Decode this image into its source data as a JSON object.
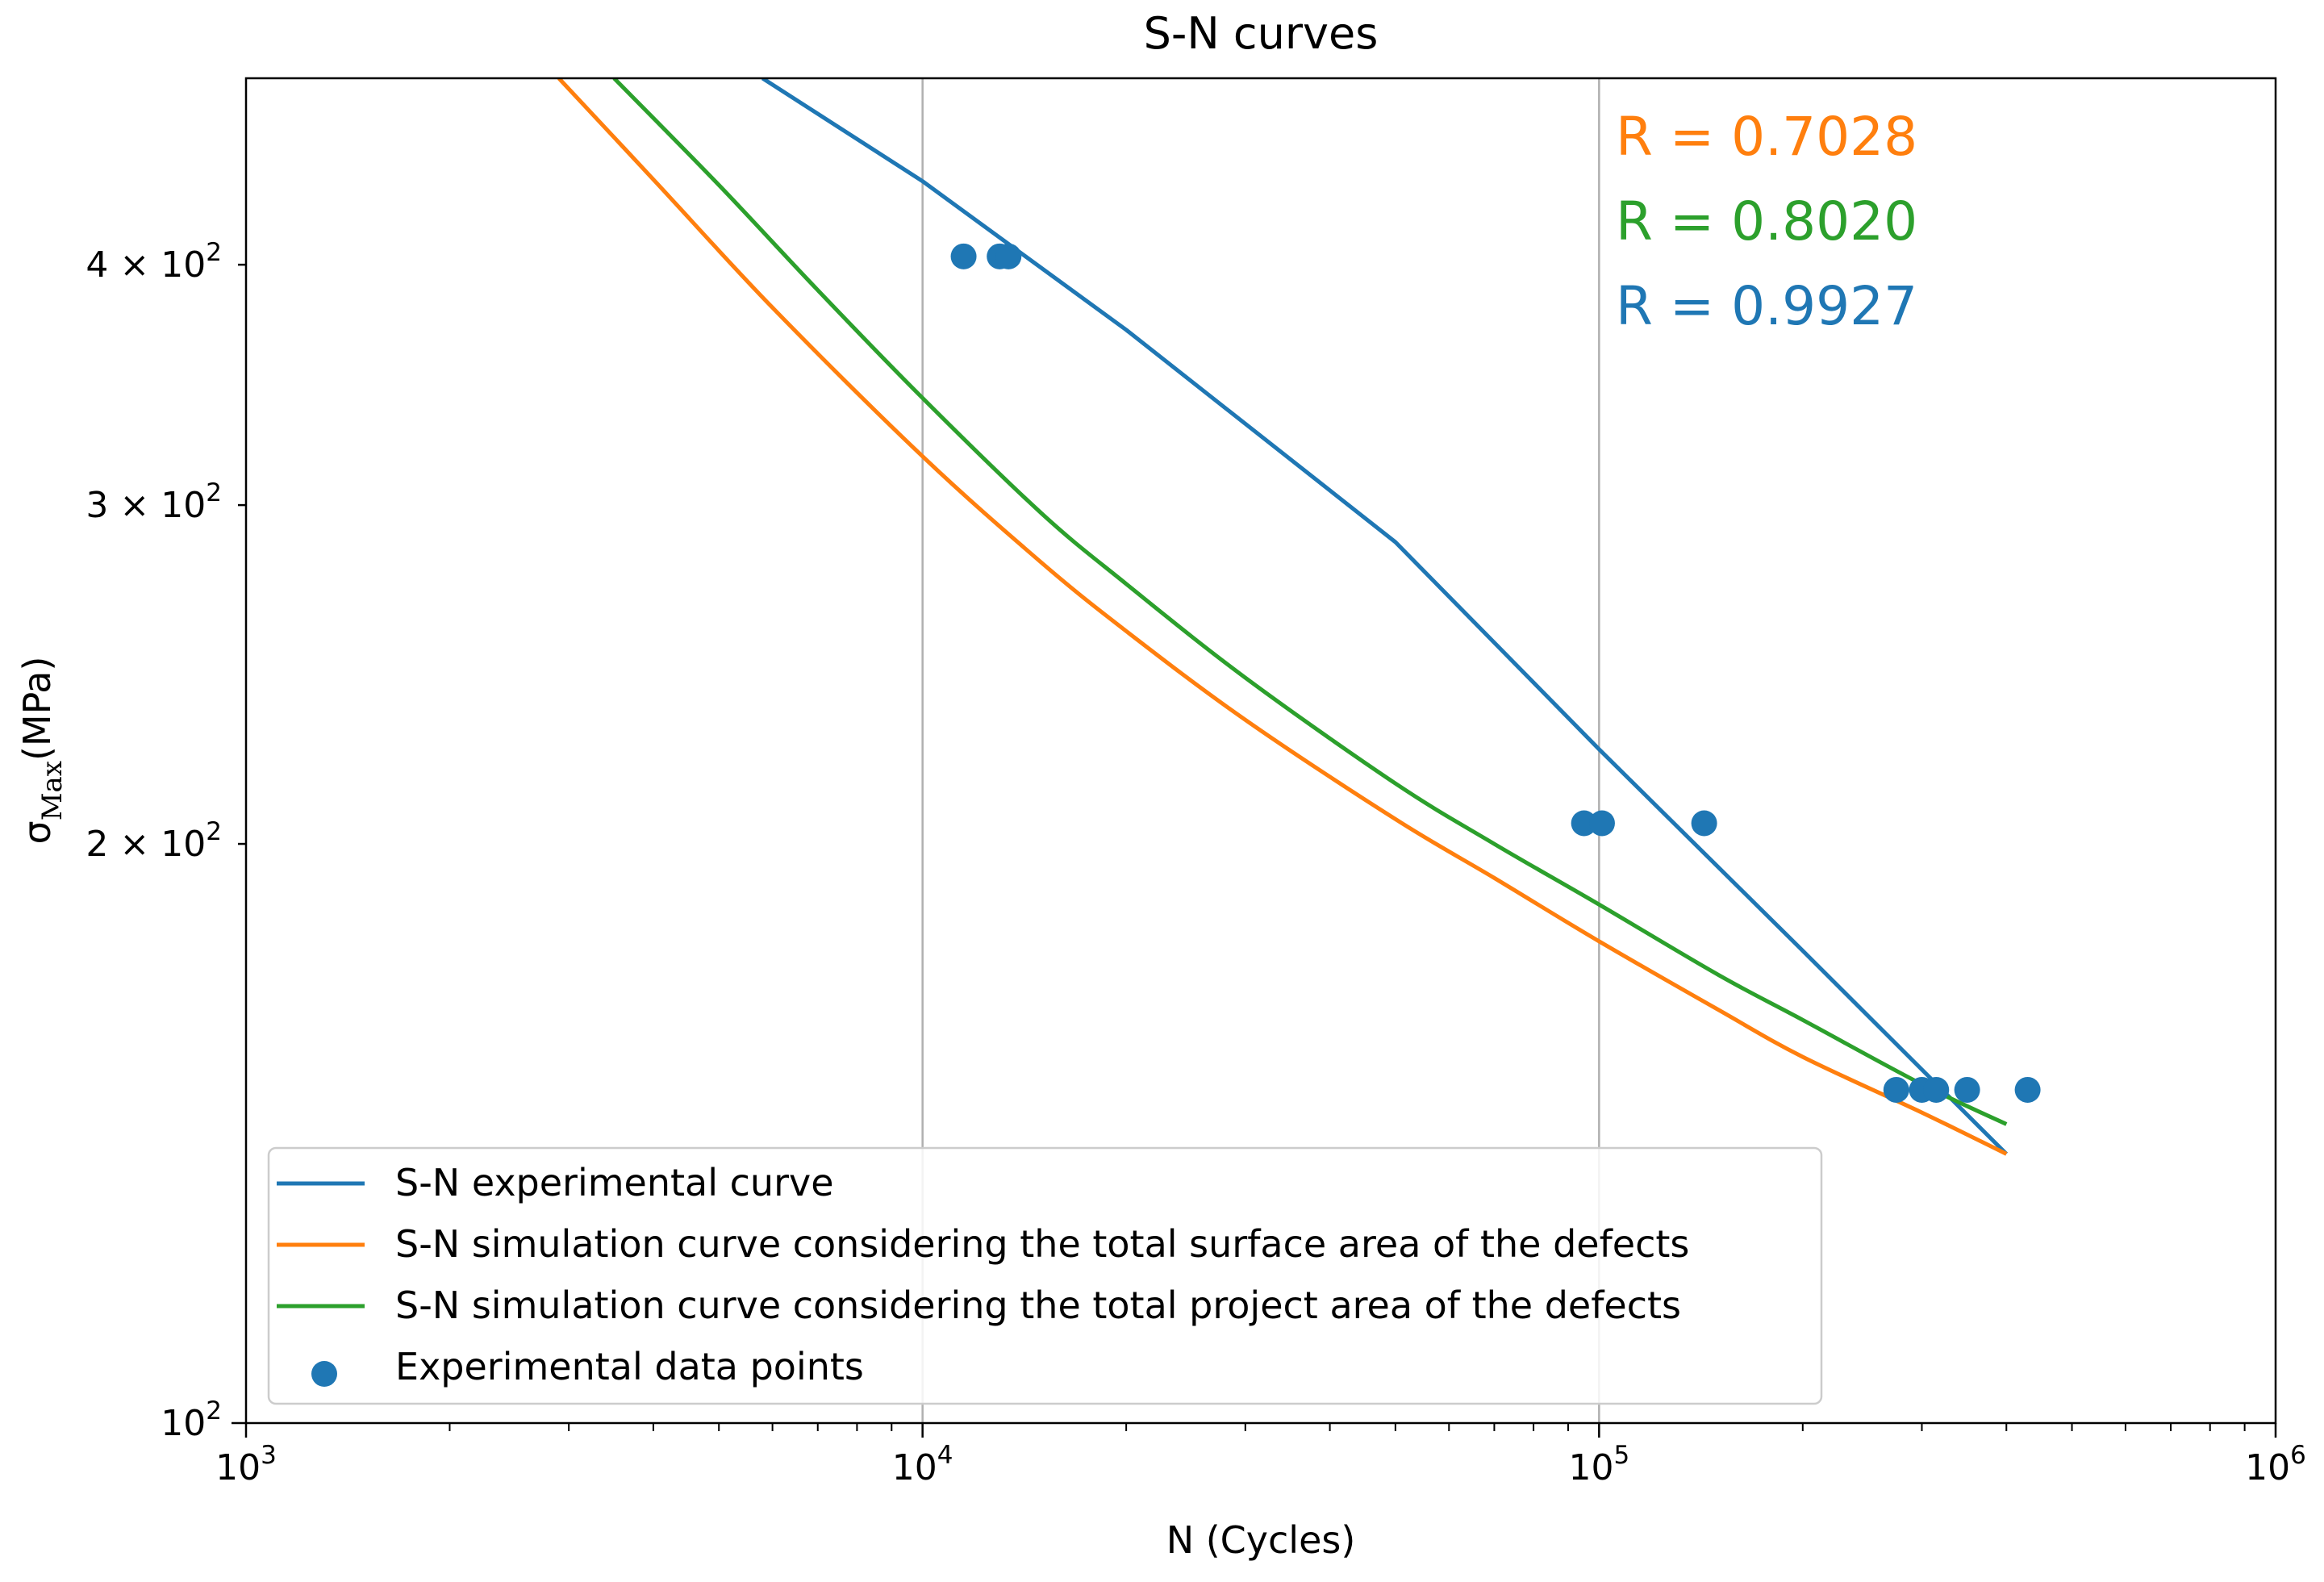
{
  "chart_data": {
    "type": "line",
    "title": "S-N curves",
    "xlabel": "N (Cycles)",
    "ylabel": {
      "base": "σ",
      "subscript": "Max",
      "units": "(MPa)"
    },
    "xscale": "log",
    "yscale": "log",
    "xlim": [
      1000,
      1000000
    ],
    "ylim": [
      100,
      500
    ],
    "grid": "x-major",
    "x_ticks": [
      {
        "value": 1000,
        "base": "10",
        "exp": "3"
      },
      {
        "value": 10000,
        "base": "10",
        "exp": "4"
      },
      {
        "value": 100000,
        "base": "10",
        "exp": "5"
      },
      {
        "value": 1000000,
        "base": "10",
        "exp": "6"
      }
    ],
    "y_ticks": [
      {
        "value": 100,
        "mant": "",
        "base": "10",
        "exp": "2"
      },
      {
        "value": 200,
        "mant": "2 × ",
        "base": "10",
        "exp": "2"
      },
      {
        "value": 300,
        "mant": "3 × ",
        "base": "10",
        "exp": "2"
      },
      {
        "value": 400,
        "mant": "4 × ",
        "base": "10",
        "exp": "2"
      }
    ],
    "series": [
      {
        "name": "S-N experimental curve",
        "color": "#1f77b4",
        "x": [
          5800,
          10000,
          20000,
          50000,
          100000,
          200000,
          400000
        ],
        "y": [
          500,
          442,
          370,
          287,
          224,
          176,
          138
        ]
      },
      {
        "name": "S-N simulation curve considering the total surface area of the defects",
        "color": "#ff7f0e",
        "x": [
          2900,
          4000,
          6000,
          10000,
          15000,
          20000,
          30000,
          50000,
          70000,
          100000,
          150000,
          200000,
          300000,
          400000
        ],
        "y": [
          500,
          443,
          380,
          318,
          280,
          258,
          232,
          206,
          192,
          178,
          164,
          155,
          145,
          138
        ]
      },
      {
        "name": "S-N simulation curve considering the total project area of the defects",
        "color": "#2ca02c",
        "x": [
          3500,
          5000,
          7000,
          10000,
          15000,
          20000,
          30000,
          50000,
          70000,
          100000,
          150000,
          200000,
          300000,
          400000
        ],
        "y": [
          500,
          440,
          388,
          341,
          297,
          273,
          244,
          215,
          200,
          186,
          171,
          162,
          150,
          143
        ]
      }
    ],
    "scatter": {
      "name": "Experimental data points",
      "color": "#1f77b4",
      "points": [
        {
          "x": 11500,
          "y": 404
        },
        {
          "x": 13000,
          "y": 404
        },
        {
          "x": 13400,
          "y": 404
        },
        {
          "x": 95000,
          "y": 205
        },
        {
          "x": 101000,
          "y": 205
        },
        {
          "x": 143000,
          "y": 205
        },
        {
          "x": 275000,
          "y": 149
        },
        {
          "x": 300000,
          "y": 149
        },
        {
          "x": 315000,
          "y": 149
        },
        {
          "x": 350000,
          "y": 149
        },
        {
          "x": 430000,
          "y": 149
        }
      ]
    },
    "annotations": [
      {
        "text": "R = 0.7028",
        "color": "#ff7f0e"
      },
      {
        "text": "R = 0.8020",
        "color": "#2ca02c"
      },
      {
        "text": "R = 0.9927",
        "color": "#1f77b4"
      }
    ],
    "legend": {
      "placement": "lower-left",
      "entries": [
        {
          "label": "S-N experimental curve",
          "color": "#1f77b4",
          "marker": "line"
        },
        {
          "label": "S-N simulation curve considering the total surface area of the defects",
          "color": "#ff7f0e",
          "marker": "line"
        },
        {
          "label": "S-N simulation curve considering the total project area of the defects",
          "color": "#2ca02c",
          "marker": "line"
        },
        {
          "label": "Experimental data points",
          "color": "#1f77b4",
          "marker": "dot"
        }
      ]
    }
  }
}
